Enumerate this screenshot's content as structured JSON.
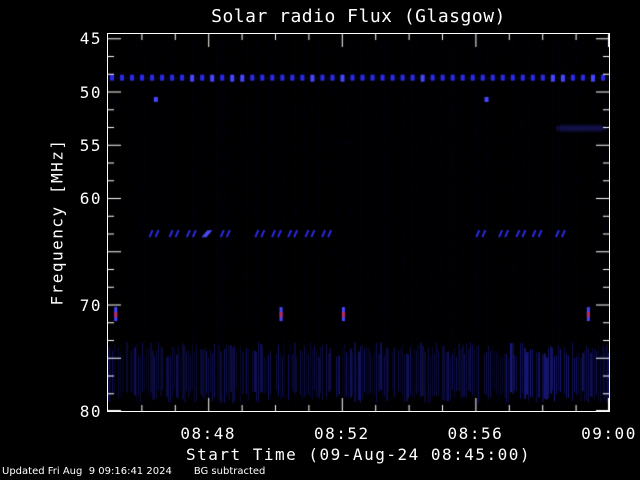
{
  "window": {
    "background": "#000000",
    "foreground": "#ffffff"
  },
  "chart_data": {
    "type": "heatmap",
    "title": "Solar radio Flux (Glasgow)",
    "xlabel": "Start Time (09-Aug-24 08:45:00)",
    "ylabel": "Frequency [MHz]",
    "x_axis": {
      "start_time": "08:45:00",
      "end_time": "09:00:00",
      "range_seconds": [
        0,
        900
      ],
      "major_ticks": [
        {
          "label": "08:48",
          "sec": 180
        },
        {
          "label": "08:52",
          "sec": 420
        },
        {
          "label": "08:56",
          "sec": 660
        },
        {
          "label": "09:00",
          "sec": 900
        }
      ],
      "minor_tick_every_sec": 60
    },
    "y_axis": {
      "unit": "MHz",
      "range_mhz": [
        44.6,
        80.0
      ],
      "direction": "increasing-downward",
      "major_ticks_mhz": [
        45,
        50,
        55,
        60,
        65,
        70,
        75,
        80
      ],
      "labeled_ticks": [
        {
          "label": "45",
          "mhz": 45
        },
        {
          "label": "50",
          "mhz": 50
        },
        {
          "label": "55",
          "mhz": 55
        },
        {
          "label": "60",
          "mhz": 60
        },
        {
          "label": "70",
          "mhz": 70
        },
        {
          "label": "80",
          "mhz": 80
        }
      ],
      "minor_ticks_per_major_interval": 2
    },
    "palette": {
      "background": "#000000",
      "frame": "#ffffff",
      "signal_blue": "#2a2ae6",
      "bright_blue": "#4646ff",
      "burst_core_red": "#c02858",
      "faint_noise_blue": "#14148c"
    },
    "features": {
      "rfi_dashed_line": {
        "mhz": 48.7,
        "style": "dashed",
        "dash_period_sec": 18,
        "span_sec": [
          0,
          900
        ],
        "note": "persistent narrowband interference line just above 50 MHz tick, dashed across full interval"
      },
      "point_dots": {
        "mhz": 50.7,
        "times_sec": [
          86,
          680
        ]
      },
      "faint_smudge": {
        "mhz": 53.4,
        "span_sec": [
          805,
          895
        ]
      },
      "intermittent_band": {
        "mhz": 63.3,
        "cluster_times_sec": [
          80,
          116,
          147,
          175,
          208,
          270,
          300,
          329,
          360,
          390,
          667,
          708,
          739,
          768,
          810
        ],
        "solid_cluster_sec": 175,
        "note": "pairs of small slanted blue marks in two groups with a gap mid-interval"
      },
      "vertical_bursts": {
        "mhz": 70.9,
        "times_sec": [
          13,
          310,
          422,
          862
        ],
        "note": "short vertical dashes, blue with red core"
      },
      "broadband_striping": {
        "mhz_span": [
          73.5,
          79.3
        ],
        "span_sec": [
          0,
          900
        ],
        "note": "weak vertical noise striping along bottom of band, slightly brighter near 08:58"
      }
    }
  },
  "footer": {
    "updated_text": "Updated Fri Aug  9 09:16:41 2024",
    "bg_text": "BG subtracted"
  }
}
